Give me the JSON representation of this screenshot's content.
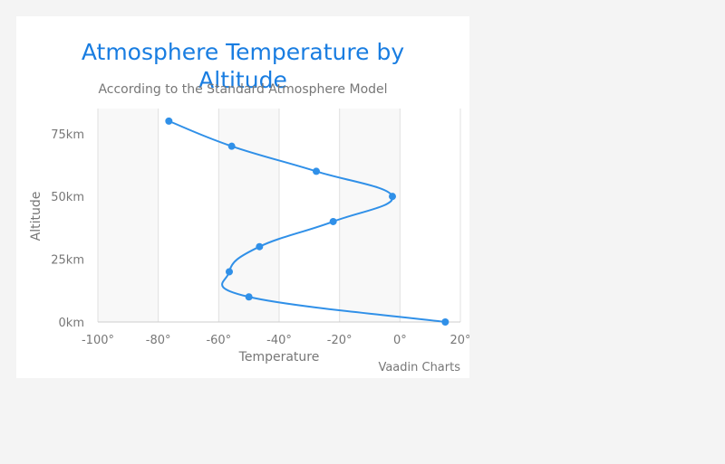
{
  "chart_data": {
    "type": "line",
    "orientation": "inverted",
    "title_lines": [
      "Atmosphere Temperature by",
      "Altitude"
    ],
    "subtitle": "According to the Standard Atmosphere Model",
    "xlabel": "Temperature",
    "ylabel": "Altitude",
    "xlim": [
      -100,
      20
    ],
    "ylim": [
      0,
      85
    ],
    "x_ticks": [
      -100,
      -80,
      -60,
      -40,
      -20,
      0,
      20
    ],
    "x_tick_labels": [
      "-100°",
      "-80°",
      "-60°",
      "-40°",
      "-20°",
      "0°",
      "20°"
    ],
    "y_ticks": [
      0,
      25,
      50,
      75
    ],
    "y_tick_labels": [
      "0km",
      "25km",
      "50km",
      "75km"
    ],
    "grid": true,
    "legend": "none",
    "series": [
      {
        "color": "#3090e8",
        "points": [
          {
            "altitude": 0,
            "temperature": 15
          },
          {
            "altitude": 10,
            "temperature": -50
          },
          {
            "altitude": 20,
            "temperature": -56.5
          },
          {
            "altitude": 30,
            "temperature": -46.5
          },
          {
            "altitude": 40,
            "temperature": -22.1
          },
          {
            "altitude": 50,
            "temperature": -2.5
          },
          {
            "altitude": 60,
            "temperature": -27.7
          },
          {
            "altitude": 70,
            "temperature": -55.7
          },
          {
            "altitude": 80,
            "temperature": -76.5
          }
        ]
      }
    ],
    "credits": "Vaadin Charts"
  }
}
